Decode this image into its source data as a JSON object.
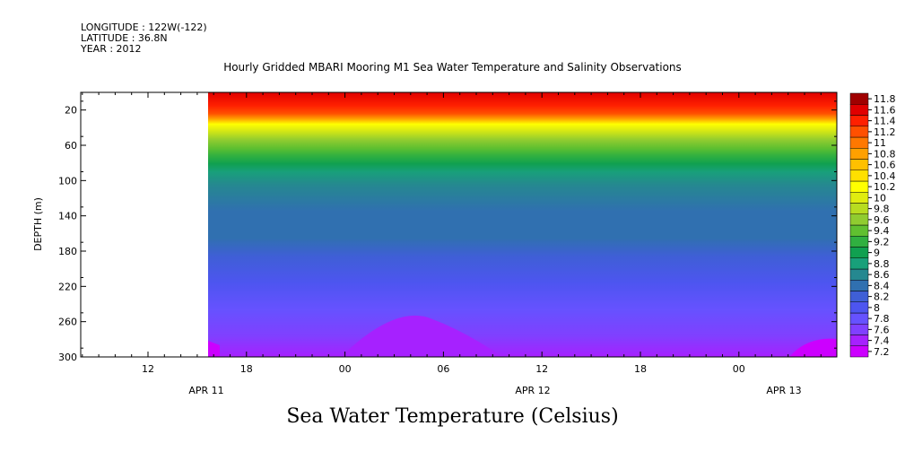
{
  "header": {
    "longitude": "LONGITUDE : 122W(-122)",
    "latitude": "LATITUDE : 36.8N",
    "year": "YEAR : 2012"
  },
  "chart_data": {
    "type": "heatmap",
    "title": "Hourly Gridded MBARI Mooring M1 Sea Water Temperature and Salinity Observations",
    "xlabel": "Sea Water Temperature (Celsius)",
    "ylabel": "DEPTH (m)",
    "ylim": [
      300,
      0
    ],
    "y_ticks": [
      20,
      60,
      100,
      140,
      180,
      220,
      260,
      300
    ],
    "x_time_ticks": [
      "12",
      "18",
      "00",
      "06",
      "12",
      "18",
      "00"
    ],
    "x_day_labels": [
      "APR 11",
      "APR 12",
      "APR 13"
    ],
    "colorbar_levels": [
      "7.2",
      "7.4",
      "7.6",
      "7.8",
      "8",
      "8.2",
      "8.4",
      "8.6",
      "8.8",
      "9",
      "9.2",
      "9.4",
      "9.6",
      "9.8",
      "10",
      "10.2",
      "10.4",
      "10.6",
      "10.8",
      "11",
      "11.2",
      "11.4",
      "11.6",
      "11.8"
    ],
    "colorbar_colors": [
      "#cc00ff",
      "#a621ff",
      "#8040ff",
      "#6652ff",
      "#4d55f0",
      "#3f5fd6",
      "#3070b0",
      "#258890",
      "#18a07a",
      "#10a050",
      "#30b040",
      "#60c030",
      "#90cc30",
      "#b8dc20",
      "#e0ec10",
      "#ffff00",
      "#ffe000",
      "#ffc000",
      "#ffa000",
      "#ff7800",
      "#ff5000",
      "#ff2000",
      "#e00000",
      "#a00000"
    ]
  }
}
